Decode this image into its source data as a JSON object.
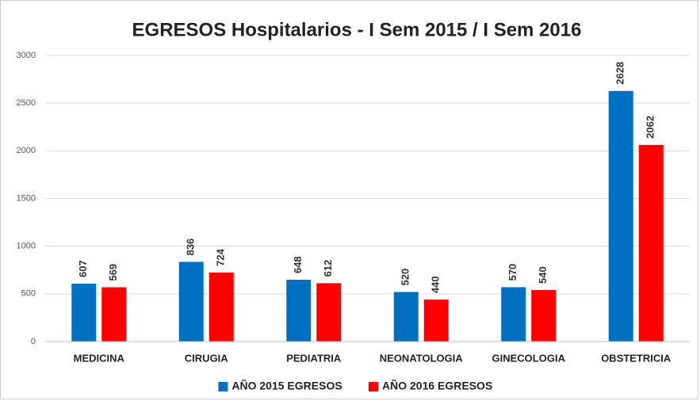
{
  "chart_data": {
    "type": "bar",
    "title": "EGRESOS Hospitalarios - I Sem 2015 / I Sem 2016",
    "categories": [
      "MEDICINA",
      "CIRUGIA",
      "PEDIATRIA",
      "NEONATOLOGIA",
      "GINECOLOGIA",
      "OBSTETRICIA"
    ],
    "series": [
      {
        "name": "AÑO 2015 EGRESOS",
        "color": "#0070c0",
        "values": [
          607,
          836,
          648,
          520,
          570,
          2628
        ]
      },
      {
        "name": "AÑO 2016 EGRESOS",
        "color": "#ff0000",
        "values": [
          569,
          724,
          612,
          440,
          540,
          2062
        ]
      }
    ],
    "ylim": [
      0,
      3000
    ],
    "yticks": [
      0,
      500,
      1000,
      1500,
      2000,
      2500,
      3000
    ],
    "grid": true,
    "legend": "bottom"
  }
}
